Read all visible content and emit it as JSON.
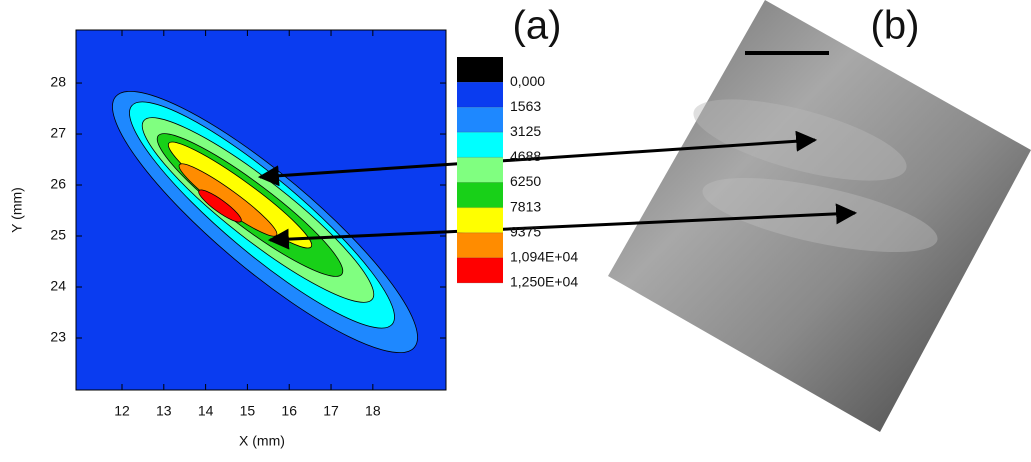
{
  "chart_data": {
    "type": "contour",
    "x_label": "X (mm)",
    "y_label": "Y (mm)",
    "xlim": [
      10.9,
      19.75
    ],
    "ylim": [
      21.98,
      29.04
    ],
    "xticks": [
      12,
      13,
      14,
      15,
      16,
      17,
      18
    ],
    "yticks": [
      23,
      24,
      25,
      26,
      27,
      28
    ],
    "levels": [
      {
        "value": 0,
        "label": "0,000"
      },
      1563,
      3125,
      4688,
      6250,
      7813,
      9375,
      {
        "value": 10940,
        "label": "1,094E+04"
      },
      {
        "value": 12500,
        "label": "1,250E+04"
      }
    ],
    "colors": [
      "#000000",
      "#0a3cf0",
      "#1e88ff",
      "#00ffff",
      "#80ff80",
      "#18d018",
      "#ffff00",
      "#ff8c00",
      "#ff0000"
    ],
    "grid": false,
    "panel_labels": [
      "(a)",
      "(b)"
    ]
  }
}
